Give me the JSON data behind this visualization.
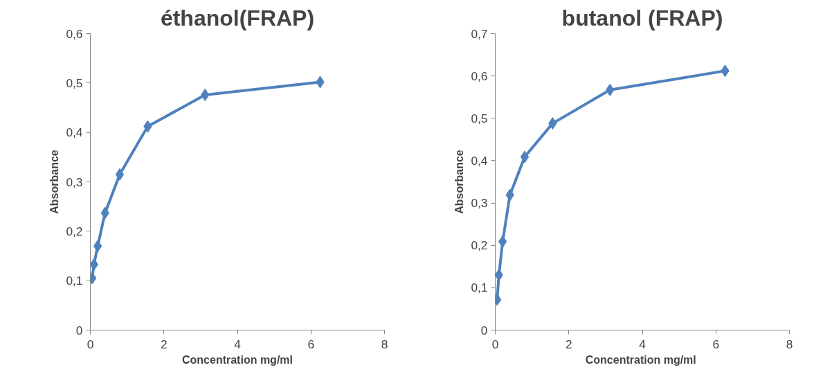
{
  "chart_data": [
    {
      "type": "line",
      "title": "éthanol(FRAP)",
      "xlabel": "Concentration mg/ml",
      "ylabel": "Absorbance",
      "x": [
        0.05,
        0.1,
        0.2,
        0.4,
        0.8,
        1.56,
        3.12,
        6.25
      ],
      "series": [
        {
          "color": "#4f81bd",
          "values": [
            0.105,
            0.133,
            0.17,
            0.237,
            0.315,
            0.412,
            0.476,
            0.502
          ]
        }
      ],
      "xlim": [
        0,
        8
      ],
      "xticks": [
        0,
        2,
        4,
        6,
        8
      ],
      "ylim": [
        0,
        0.6
      ],
      "yticks": [
        {
          "value": 0,
          "label": "0"
        },
        {
          "value": 0.1,
          "label": "0,1"
        },
        {
          "value": 0.2,
          "label": "0,2"
        },
        {
          "value": 0.3,
          "label": "0,3"
        },
        {
          "value": 0.4,
          "label": "0,4"
        },
        {
          "value": 0.5,
          "label": "0,5"
        },
        {
          "value": 0.6,
          "label": "0,6"
        }
      ],
      "grid": false,
      "marker": "diamond",
      "line_style": "solid"
    },
    {
      "type": "line",
      "title": "butanol (FRAP)",
      "xlabel": "Concentration  mg/ml",
      "ylabel": "Absorbance",
      "x": [
        0.05,
        0.1,
        0.2,
        0.4,
        0.8,
        1.56,
        3.12,
        6.25
      ],
      "series": [
        {
          "color": "#4f81bd",
          "values": [
            0.072,
            0.13,
            0.209,
            0.319,
            0.409,
            0.488,
            0.567,
            0.612
          ]
        }
      ],
      "xlim": [
        0,
        8
      ],
      "xticks": [
        0,
        2,
        4,
        6,
        8
      ],
      "ylim": [
        0,
        0.7
      ],
      "yticks": [
        {
          "value": 0,
          "label": "0"
        },
        {
          "value": 0.1,
          "label": "0,1"
        },
        {
          "value": 0.2,
          "label": "0,2"
        },
        {
          "value": 0.3,
          "label": "0,3"
        },
        {
          "value": 0.4,
          "label": "0,4"
        },
        {
          "value": 0.5,
          "label": "0,5"
        },
        {
          "value": 0.6,
          "label": "0,6"
        },
        {
          "value": 0.7,
          "label": "0,7"
        }
      ],
      "grid": false,
      "marker": "diamond",
      "line_style": "solid"
    }
  ]
}
